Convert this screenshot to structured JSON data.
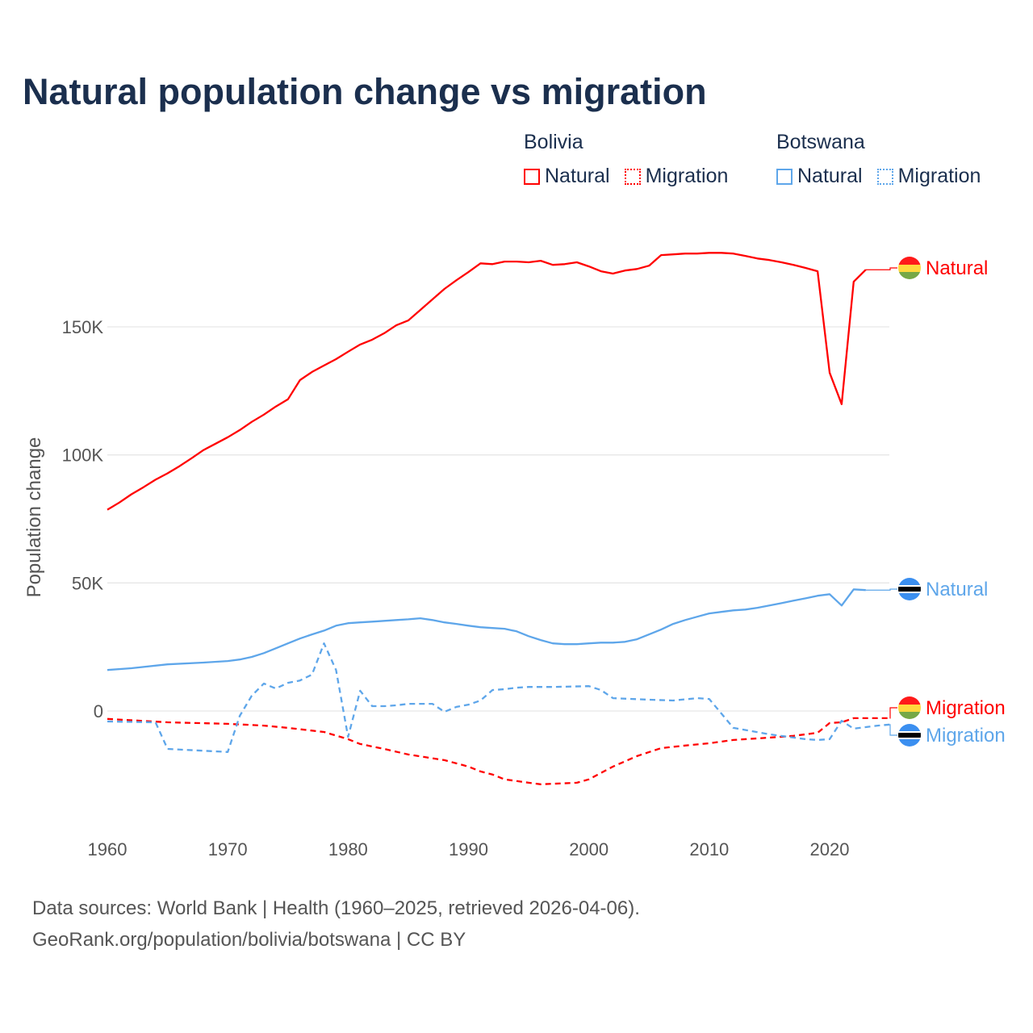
{
  "chart_data": {
    "type": "line",
    "title": "Natural population change vs migration",
    "xlabel": "",
    "ylabel": "Population change",
    "xlim": [
      1960,
      2025
    ],
    "ylim": [
      -45000,
      180000
    ],
    "x_ticks": [
      1960,
      1970,
      1980,
      1990,
      2000,
      2010,
      2020
    ],
    "x_tick_labels": [
      "1960",
      "1970",
      "1980",
      "1990",
      "2000",
      "2010",
      "2020"
    ],
    "y_ticks": [
      0,
      50000,
      100000,
      150000
    ],
    "y_tick_labels": [
      "0",
      "50K",
      "100K",
      "150K"
    ],
    "grid": true,
    "legend_placement": "top-right",
    "legend": [
      {
        "country": "Bolivia",
        "items": [
          "Natural",
          "Migration"
        ]
      },
      {
        "country": "Botswana",
        "items": [
          "Natural",
          "Migration"
        ]
      }
    ],
    "series": [
      {
        "name": "Bolivia Natural",
        "country": "Bolivia",
        "kind": "Natural",
        "color": "#ff0000",
        "dash": false,
        "end_label": "Natural",
        "x": [
          1960,
          1961,
          1962,
          1963,
          1964,
          1965,
          1966,
          1967,
          1968,
          1969,
          1970,
          1971,
          1972,
          1973,
          1974,
          1975,
          1976,
          1977,
          1978,
          1979,
          1980,
          1981,
          1982,
          1983,
          1984,
          1985,
          1986,
          1987,
          1988,
          1989,
          1990,
          1991,
          1992,
          1993,
          1994,
          1995,
          1996,
          1997,
          1998,
          1999,
          2000,
          2001,
          2002,
          2003,
          2004,
          2005,
          2006,
          2007,
          2008,
          2009,
          2010,
          2011,
          2012,
          2013,
          2014,
          2015,
          2016,
          2017,
          2018,
          2019,
          2020,
          2021,
          2022,
          2023
        ],
        "y": [
          78600,
          81400,
          84600,
          87400,
          90300,
          92800,
          95600,
          98700,
          101900,
          104400,
          106900,
          109700,
          112900,
          115700,
          118900,
          121700,
          129200,
          132400,
          134900,
          137400,
          140300,
          143100,
          145000,
          147500,
          150600,
          152500,
          156600,
          160700,
          164800,
          168200,
          171400,
          174800,
          174500,
          175500,
          175500,
          175200,
          175800,
          174200,
          174500,
          175200,
          173600,
          171700,
          170800,
          172000,
          172600,
          173900,
          178000,
          178300,
          178600,
          178600,
          178900,
          178900,
          178600,
          177700,
          176700,
          176100,
          175200,
          174200,
          173000,
          171700,
          132100,
          119800,
          167600,
          172300
        ]
      },
      {
        "name": "Bolivia Migration",
        "country": "Bolivia",
        "kind": "Migration",
        "color": "#ff0000",
        "dash": true,
        "end_label": "Migration",
        "x": [
          1960,
          1965,
          1970,
          1973,
          1975,
          1978,
          1980,
          1981,
          1983,
          1985,
          1988,
          1990,
          1991,
          1992,
          1993,
          1995,
          1996,
          1999,
          2000,
          2001,
          2002,
          2004,
          2006,
          2008,
          2010,
          2012,
          2015,
          2017,
          2019,
          2020,
          2021,
          2022,
          2023,
          2024,
          2025
        ],
        "y": [
          -3100,
          -4400,
          -5000,
          -5700,
          -6600,
          -8200,
          -11000,
          -12900,
          -14800,
          -17000,
          -19200,
          -21700,
          -23600,
          -24800,
          -26700,
          -28000,
          -28600,
          -28000,
          -26700,
          -24200,
          -21700,
          -17600,
          -14500,
          -13500,
          -12600,
          -11300,
          -10400,
          -9700,
          -8500,
          -4700,
          -4400,
          -2800,
          -2800,
          -2800,
          -2800
        ]
      },
      {
        "name": "Botswana Natural",
        "country": "Botswana",
        "kind": "Natural",
        "color": "#5ea6ea",
        "dash": false,
        "end_label": "Natural",
        "x": [
          1960,
          1962,
          1965,
          1968,
          1970,
          1971,
          1972,
          1973,
          1974,
          1975,
          1976,
          1977,
          1978,
          1979,
          1980,
          1981,
          1982,
          1983,
          1984,
          1985,
          1986,
          1987,
          1988,
          1989,
          1990,
          1991,
          1992,
          1993,
          1994,
          1995,
          1996,
          1997,
          1998,
          1999,
          2000,
          2001,
          2002,
          2003,
          2004,
          2005,
          2006,
          2007,
          2008,
          2009,
          2010,
          2011,
          2012,
          2013,
          2014,
          2015,
          2016,
          2017,
          2018,
          2019,
          2020,
          2021,
          2022,
          2023
        ],
        "y": [
          16000,
          16700,
          18200,
          18900,
          19500,
          20100,
          21100,
          22600,
          24500,
          26400,
          28300,
          29900,
          31400,
          33300,
          34300,
          34600,
          34900,
          35200,
          35500,
          35800,
          36200,
          35500,
          34600,
          34000,
          33300,
          32700,
          32400,
          32100,
          31100,
          29200,
          27700,
          26400,
          26100,
          26100,
          26400,
          26700,
          26700,
          27000,
          28000,
          29900,
          31800,
          34000,
          35500,
          36800,
          38100,
          38700,
          39300,
          39600,
          40300,
          41200,
          42100,
          43100,
          44000,
          45000,
          45600,
          41200,
          47500,
          47200
        ]
      },
      {
        "name": "Botswana Migration",
        "country": "Botswana",
        "kind": "Migration",
        "color": "#5ea6ea",
        "dash": true,
        "end_label": "Migration",
        "x": [
          1960,
          1964,
          1965,
          1970,
          1971,
          1972,
          1973,
          1974,
          1975,
          1976,
          1977,
          1978,
          1979,
          1980,
          1981,
          1982,
          1983,
          1984,
          1985,
          1986,
          1987,
          1988,
          1989,
          1990,
          1991,
          1992,
          1993,
          1994,
          1995,
          1997,
          2000,
          2001,
          2002,
          2005,
          2007,
          2009,
          2010,
          2012,
          2015,
          2018,
          2019,
          2020,
          2021,
          2022,
          2024,
          2025
        ],
        "y": [
          -4100,
          -4400,
          -14800,
          -16000,
          -1900,
          6000,
          10700,
          8800,
          11000,
          11900,
          14200,
          26400,
          16000,
          -10100,
          7900,
          1900,
          1900,
          2200,
          2800,
          2800,
          2800,
          -300,
          1600,
          2500,
          4100,
          8200,
          8500,
          9100,
          9400,
          9400,
          9700,
          8200,
          5000,
          4400,
          4100,
          5000,
          4700,
          -6600,
          -9100,
          -11000,
          -11300,
          -11000,
          -3800,
          -6900,
          -5700,
          -5300
        ]
      }
    ]
  },
  "footer": {
    "line1": "Data sources: World Bank | Health (1960–2025, retrieved 2026-04-06).",
    "line2": "GeoRank.org/population/bolivia/botswana | CC BY"
  }
}
